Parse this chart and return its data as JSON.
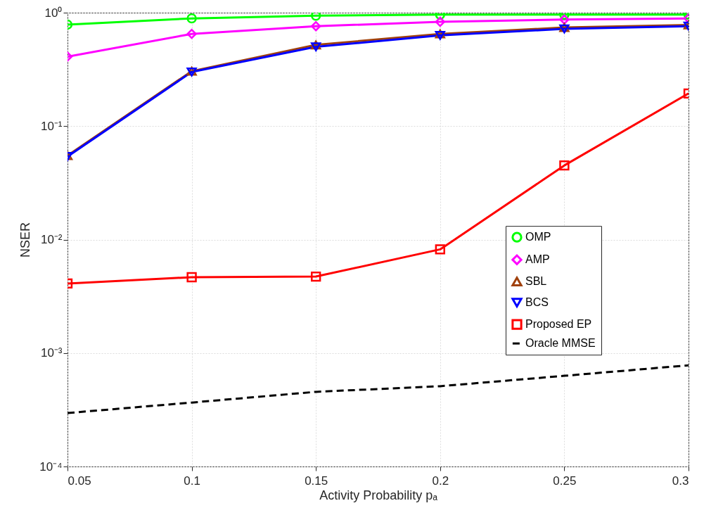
{
  "chart_data": {
    "type": "line",
    "xlabel": "Activity Probability pₐ",
    "ylabel": "NSER",
    "x": [
      0.05,
      0.1,
      0.15,
      0.2,
      0.25,
      0.3
    ],
    "series": [
      {
        "name": "OMP",
        "color": "#00ff00",
        "marker": "circle",
        "values": [
          0.785,
          0.89,
          0.94,
          0.96,
          0.96,
          0.96
        ]
      },
      {
        "name": "AMP",
        "color": "#ff00ff",
        "marker": "diamond",
        "values": [
          0.41,
          0.65,
          0.76,
          0.83,
          0.87,
          0.89
        ]
      },
      {
        "name": "SBL",
        "color": "#a0410d",
        "marker": "triangle",
        "values": [
          0.055,
          0.305,
          0.52,
          0.65,
          0.74,
          0.78
        ]
      },
      {
        "name": "BCS",
        "color": "#0000ff",
        "marker": "triangle-down",
        "values": [
          0.054,
          0.3,
          0.5,
          0.63,
          0.72,
          0.76
        ]
      },
      {
        "name": "Proposed EP",
        "color": "#ff0000",
        "marker": "square",
        "values": [
          0.0041,
          0.00466,
          0.00472,
          0.0082,
          0.045,
          0.194
        ]
      },
      {
        "name": "Oracle MMSE",
        "color": "#000000",
        "marker": "none",
        "line_style": "dashed",
        "values": [
          0.000296,
          0.000366,
          0.000455,
          0.00051,
          0.00063,
          0.00078
        ]
      }
    ],
    "log": "y",
    "xlim": [
      0.05,
      0.3
    ],
    "xticks": [
      0.05,
      0.1,
      0.15,
      0.2,
      0.25,
      0.3
    ],
    "ylim": [
      0.0001,
      1
    ],
    "yticks": [
      {
        "value": 0.0001,
        "label": "10⁻⁴"
      },
      {
        "value": 0.001,
        "label": "10⁻³"
      },
      {
        "value": 0.01,
        "label": "10⁻²"
      },
      {
        "value": 0.1,
        "label": "10⁻¹"
      },
      {
        "value": 1,
        "label": "10⁰"
      }
    ],
    "grid": true,
    "legend": "right",
    "line_style": "solid"
  }
}
